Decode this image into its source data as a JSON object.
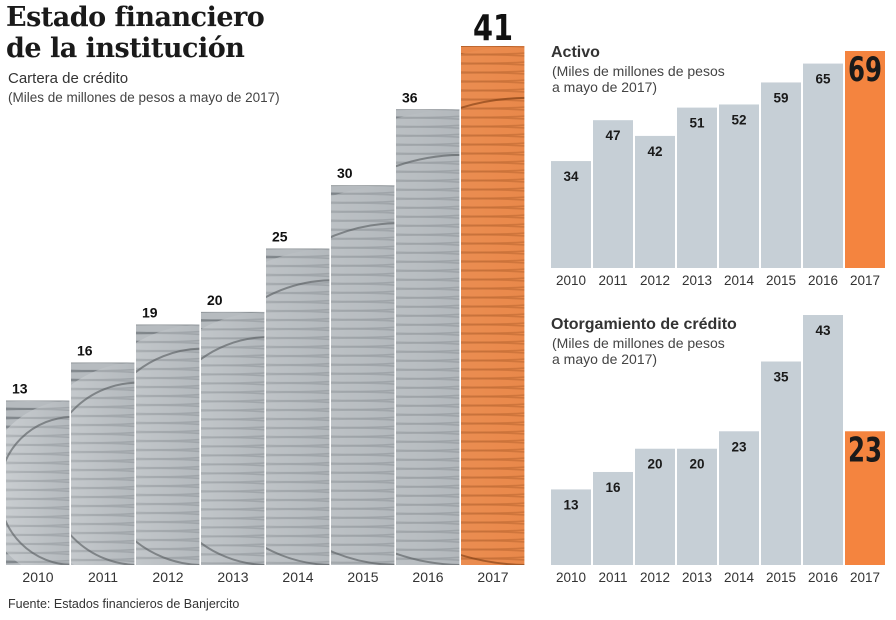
{
  "title_line1": "Estado financiero",
  "title_line2": "de la institución",
  "source": "Fuente: Estados financieros de Banjercito",
  "colors": {
    "bar": "#c6cfd6",
    "bar_highlight": "#f4843f",
    "coin_dark": "#6f7479",
    "coin_mid": "#b6bbbf",
    "coin_light": "#e6e9eb",
    "coin_orange": "#e9884a",
    "text": "#222222"
  },
  "chart_data": [
    {
      "type": "bar",
      "title": "Cartera de crédito",
      "units": "(Miles de millones de pesos a mayo de 2017)",
      "categories": [
        "2010",
        "2011",
        "2012",
        "2013",
        "2014",
        "2015",
        "2016",
        "2017"
      ],
      "values": [
        13,
        16,
        19,
        20,
        25,
        30,
        36,
        41
      ],
      "highlight": "2017",
      "ylim": [
        0,
        41
      ],
      "style": "coin-stack bars"
    },
    {
      "type": "bar",
      "title": "Activo",
      "units_lines": [
        "(Miles de millones de pesos",
        "a mayo de 2017)"
      ],
      "categories": [
        "2010",
        "2011",
        "2012",
        "2013",
        "2014",
        "2015",
        "2016",
        "2017"
      ],
      "values": [
        34,
        47,
        42,
        51,
        52,
        59,
        65,
        69
      ],
      "highlight": "2017",
      "ylim": [
        0,
        69
      ]
    },
    {
      "type": "bar",
      "title": "Otorgamiento de crédito",
      "units_lines": [
        "(Miles de millones de pesos",
        "a mayo de 2017)"
      ],
      "categories": [
        "2010",
        "2011",
        "2012",
        "2013",
        "2014",
        "2015",
        "2016",
        "2017"
      ],
      "values": [
        13,
        16,
        20,
        20,
        23,
        35,
        43,
        23
      ],
      "highlight": "2017",
      "ylim": [
        0,
        43
      ]
    }
  ]
}
